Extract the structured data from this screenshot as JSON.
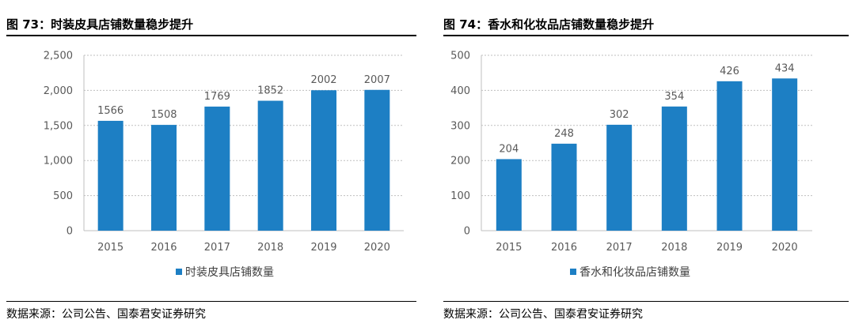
{
  "chart_data": [
    {
      "type": "bar",
      "title": "图 73：时装皮具店铺数量稳步提升",
      "categories": [
        "2015",
        "2016",
        "2017",
        "2018",
        "2019",
        "2020"
      ],
      "series": [
        {
          "name": "时装皮具店铺数量",
          "values": [
            1566,
            1508,
            1769,
            1852,
            2002,
            2007
          ],
          "color": "#1d7fc4"
        }
      ],
      "data_labels": [
        "1566",
        "1508",
        "1769",
        "1852",
        "2002",
        "2007"
      ],
      "ylim": [
        0,
        2500
      ],
      "yticks": [
        0,
        500,
        1000,
        1500,
        2000,
        2500
      ],
      "ytick_labels": [
        "0",
        "500",
        "1,000",
        "1,500",
        "2,000",
        "2,500"
      ],
      "grid": true,
      "legend": "bottom",
      "source": "数据来源：公司公告、国泰君安证券研究"
    },
    {
      "type": "bar",
      "title": "图 74：香水和化妆品店铺数量稳步提升",
      "categories": [
        "2015",
        "2016",
        "2017",
        "2018",
        "2019",
        "2020"
      ],
      "series": [
        {
          "name": "香水和化妆品店铺数量",
          "values": [
            204,
            248,
            302,
            354,
            426,
            434
          ],
          "color": "#1d7fc4"
        }
      ],
      "data_labels": [
        "204",
        "248",
        "302",
        "354",
        "426",
        "434"
      ],
      "ylim": [
        0,
        500
      ],
      "yticks": [
        0,
        100,
        200,
        300,
        400,
        500
      ],
      "ytick_labels": [
        "0",
        "100",
        "200",
        "300",
        "400",
        "500"
      ],
      "grid": true,
      "legend": "bottom",
      "source": "数据来源：公司公告、国泰君安证券研究"
    }
  ]
}
